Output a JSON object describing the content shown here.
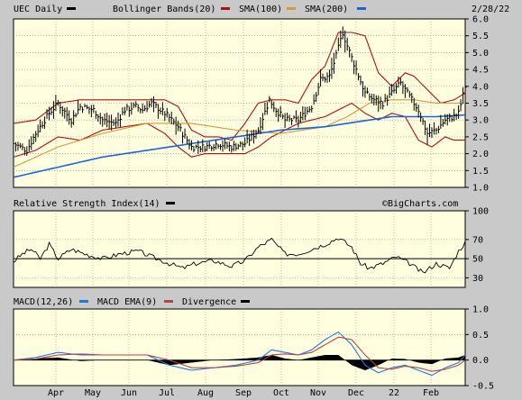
{
  "header": {
    "symbol_label": "UEC Daily",
    "bb_label": "Bollinger Bands(20)",
    "sma100_label": "SMA(100)",
    "sma200_label": "SMA(200)",
    "date": "2/28/22"
  },
  "rsi_panel": {
    "title": "Relative Strength Index(14)",
    "watermark": "©BigCharts.com"
  },
  "macd_panel": {
    "macd_label": "MACD(12,26)",
    "ema_label": "MACD EMA(9)",
    "div_label": "Divergence"
  },
  "months": [
    "Apr",
    "May",
    "Jun",
    "Jul",
    "Aug",
    "Sep",
    "Oct",
    "Nov",
    "Dec",
    "22",
    "Feb"
  ],
  "colors": {
    "background": "#c9c9c9",
    "plot": "#ffffe0",
    "grid": "#8c8c8c",
    "price": "#000000",
    "bollinger": "#aa1111",
    "sma100": "#d19a3c",
    "sma200": "#1e63d6",
    "macd": "#2277dd",
    "macd_ema": "#b44444",
    "divergence": "#000000"
  },
  "chart_data": [
    {
      "type": "ohlc",
      "name": "price",
      "ylim": [
        1.0,
        6.0
      ],
      "yticks": [
        1.0,
        1.5,
        2.0,
        2.5,
        3.0,
        3.5,
        4.0,
        4.5,
        5.0,
        5.5,
        6.0
      ],
      "ytick_labels": [
        "1.0",
        "1.5",
        "2.0",
        "2.5",
        "3.0",
        "3.5",
        "4.0",
        "4.5",
        "5.0",
        "5.5",
        "6.0"
      ],
      "months": [
        "Apr",
        "May",
        "Jun",
        "Jul",
        "Aug",
        "Sep",
        "Oct",
        "Nov",
        "Dec",
        "22",
        "Feb"
      ],
      "close_path": [
        [
          0,
          2.3
        ],
        [
          6,
          2.1
        ],
        [
          10,
          2.6
        ],
        [
          16,
          3.2
        ],
        [
          20,
          3.5
        ],
        [
          26,
          3.0
        ],
        [
          30,
          3.4
        ],
        [
          36,
          3.3
        ],
        [
          40,
          3.0
        ],
        [
          46,
          2.9
        ],
        [
          50,
          3.3
        ],
        [
          55,
          3.4
        ],
        [
          58,
          3.3
        ],
        [
          62,
          3.5
        ],
        [
          68,
          3.2
        ],
        [
          74,
          2.8
        ],
        [
          80,
          2.2
        ],
        [
          86,
          2.2
        ],
        [
          92,
          2.3
        ],
        [
          98,
          2.2
        ],
        [
          104,
          2.3
        ],
        [
          110,
          2.7
        ],
        [
          115,
          3.6
        ],
        [
          118,
          3.3
        ],
        [
          122,
          3.0
        ],
        [
          128,
          3.0
        ],
        [
          134,
          3.4
        ],
        [
          138,
          4.2
        ],
        [
          142,
          4.3
        ],
        [
          145,
          4.9
        ],
        [
          148,
          5.6
        ],
        [
          150,
          5.2
        ],
        [
          154,
          4.5
        ],
        [
          158,
          3.8
        ],
        [
          162,
          3.6
        ],
        [
          166,
          3.5
        ],
        [
          170,
          3.8
        ],
        [
          174,
          4.1
        ],
        [
          178,
          3.7
        ],
        [
          182,
          3.3
        ],
        [
          186,
          2.6
        ],
        [
          190,
          2.7
        ],
        [
          194,
          3.0
        ],
        [
          198,
          3.1
        ],
        [
          200,
          3.2
        ],
        [
          203,
          4.0
        ]
      ],
      "bollinger_upper": [
        [
          0,
          2.9
        ],
        [
          10,
          3.0
        ],
        [
          20,
          3.5
        ],
        [
          30,
          3.6
        ],
        [
          40,
          3.6
        ],
        [
          50,
          3.6
        ],
        [
          60,
          3.6
        ],
        [
          68,
          3.6
        ],
        [
          74,
          3.4
        ],
        [
          80,
          2.7
        ],
        [
          86,
          2.5
        ],
        [
          92,
          2.5
        ],
        [
          98,
          2.4
        ],
        [
          104,
          2.9
        ],
        [
          110,
          3.5
        ],
        [
          116,
          3.6
        ],
        [
          122,
          3.6
        ],
        [
          128,
          3.5
        ],
        [
          134,
          4.2
        ],
        [
          140,
          4.6
        ],
        [
          146,
          5.6
        ],
        [
          152,
          5.6
        ],
        [
          158,
          5.5
        ],
        [
          164,
          4.4
        ],
        [
          170,
          4.0
        ],
        [
          176,
          4.4
        ],
        [
          180,
          4.3
        ],
        [
          186,
          3.9
        ],
        [
          192,
          3.5
        ],
        [
          198,
          3.6
        ],
        [
          203,
          3.8
        ]
      ],
      "bollinger_lower": [
        [
          0,
          1.9
        ],
        [
          10,
          2.1
        ],
        [
          20,
          2.5
        ],
        [
          30,
          2.4
        ],
        [
          40,
          2.7
        ],
        [
          50,
          2.8
        ],
        [
          60,
          2.9
        ],
        [
          68,
          2.6
        ],
        [
          74,
          2.2
        ],
        [
          80,
          1.9
        ],
        [
          86,
          2.0
        ],
        [
          92,
          2.0
        ],
        [
          98,
          2.0
        ],
        [
          104,
          2.0
        ],
        [
          110,
          2.2
        ],
        [
          116,
          2.5
        ],
        [
          122,
          2.7
        ],
        [
          128,
          2.9
        ],
        [
          134,
          3.0
        ],
        [
          140,
          3.1
        ],
        [
          146,
          3.3
        ],
        [
          152,
          3.5
        ],
        [
          158,
          3.2
        ],
        [
          164,
          3.0
        ],
        [
          170,
          3.2
        ],
        [
          176,
          3.1
        ],
        [
          182,
          2.4
        ],
        [
          188,
          2.2
        ],
        [
          194,
          2.5
        ],
        [
          198,
          2.4
        ],
        [
          203,
          2.4
        ]
      ],
      "sma100": [
        [
          0,
          1.6
        ],
        [
          20,
          2.2
        ],
        [
          40,
          2.6
        ],
        [
          60,
          2.9
        ],
        [
          80,
          2.9
        ],
        [
          100,
          2.7
        ],
        [
          120,
          2.6
        ],
        [
          140,
          2.8
        ],
        [
          150,
          3.1
        ],
        [
          160,
          3.5
        ],
        [
          170,
          3.6
        ],
        [
          180,
          3.6
        ],
        [
          190,
          3.5
        ],
        [
          203,
          3.5
        ]
      ],
      "sma200": [
        [
          0,
          1.3
        ],
        [
          20,
          1.6
        ],
        [
          40,
          1.9
        ],
        [
          60,
          2.1
        ],
        [
          80,
          2.3
        ],
        [
          100,
          2.5
        ],
        [
          120,
          2.7
        ],
        [
          140,
          2.8
        ],
        [
          150,
          2.9
        ],
        [
          160,
          3.0
        ],
        [
          170,
          3.1
        ],
        [
          180,
          3.1
        ],
        [
          190,
          3.1
        ],
        [
          203,
          3.15
        ]
      ]
    },
    {
      "type": "line",
      "name": "rsi",
      "ylim": [
        20,
        100
      ],
      "yticks": [
        100,
        70,
        50,
        30
      ],
      "ytick_labels": [
        "100",
        "70",
        "50",
        "30"
      ],
      "reference_line": 50,
      "values": [
        [
          0,
          47
        ],
        [
          4,
          55
        ],
        [
          8,
          60
        ],
        [
          12,
          50
        ],
        [
          16,
          65
        ],
        [
          20,
          50
        ],
        [
          26,
          60
        ],
        [
          32,
          55
        ],
        [
          40,
          50
        ],
        [
          48,
          55
        ],
        [
          56,
          58
        ],
        [
          62,
          52
        ],
        [
          70,
          45
        ],
        [
          76,
          40
        ],
        [
          82,
          45
        ],
        [
          90,
          48
        ],
        [
          98,
          42
        ],
        [
          104,
          48
        ],
        [
          110,
          62
        ],
        [
          116,
          70
        ],
        [
          122,
          55
        ],
        [
          128,
          55
        ],
        [
          134,
          60
        ],
        [
          140,
          65
        ],
        [
          146,
          72
        ],
        [
          152,
          62
        ],
        [
          156,
          45
        ],
        [
          160,
          40
        ],
        [
          166,
          45
        ],
        [
          172,
          52
        ],
        [
          178,
          45
        ],
        [
          184,
          35
        ],
        [
          190,
          45
        ],
        [
          196,
          40
        ],
        [
          200,
          58
        ],
        [
          203,
          67
        ]
      ]
    },
    {
      "type": "line",
      "name": "macd",
      "ylim": [
        -0.5,
        1.0
      ],
      "yticks": [
        1.0,
        0.5,
        0.0,
        -0.5
      ],
      "ytick_labels": [
        "1.0",
        "0.5",
        "0.0",
        "-0.5"
      ],
      "series": [
        {
          "name": "MACD(12,26)",
          "values": [
            [
              0,
              0.0
            ],
            [
              10,
              0.05
            ],
            [
              20,
              0.15
            ],
            [
              30,
              0.1
            ],
            [
              40,
              0.1
            ],
            [
              50,
              0.1
            ],
            [
              60,
              0.1
            ],
            [
              70,
              -0.1
            ],
            [
              80,
              -0.2
            ],
            [
              90,
              -0.15
            ],
            [
              100,
              -0.1
            ],
            [
              110,
              0.0
            ],
            [
              116,
              0.2
            ],
            [
              122,
              0.15
            ],
            [
              128,
              0.1
            ],
            [
              134,
              0.2
            ],
            [
              140,
              0.4
            ],
            [
              146,
              0.55
            ],
            [
              152,
              0.3
            ],
            [
              158,
              -0.1
            ],
            [
              164,
              -0.25
            ],
            [
              170,
              -0.15
            ],
            [
              176,
              -0.1
            ],
            [
              182,
              -0.2
            ],
            [
              188,
              -0.3
            ],
            [
              194,
              -0.15
            ],
            [
              200,
              -0.05
            ],
            [
              203,
              0.1
            ]
          ]
        },
        {
          "name": "MACD EMA(9)",
          "values": [
            [
              0,
              0.0
            ],
            [
              10,
              0.02
            ],
            [
              20,
              0.1
            ],
            [
              30,
              0.12
            ],
            [
              40,
              0.1
            ],
            [
              50,
              0.1
            ],
            [
              60,
              0.1
            ],
            [
              70,
              0.0
            ],
            [
              80,
              -0.15
            ],
            [
              90,
              -0.15
            ],
            [
              100,
              -0.12
            ],
            [
              110,
              -0.05
            ],
            [
              116,
              0.1
            ],
            [
              122,
              0.12
            ],
            [
              128,
              0.1
            ],
            [
              134,
              0.15
            ],
            [
              140,
              0.3
            ],
            [
              146,
              0.45
            ],
            [
              152,
              0.4
            ],
            [
              158,
              0.1
            ],
            [
              164,
              -0.15
            ],
            [
              170,
              -0.18
            ],
            [
              176,
              -0.12
            ],
            [
              182,
              -0.15
            ],
            [
              188,
              -0.22
            ],
            [
              194,
              -0.18
            ],
            [
              200,
              -0.1
            ],
            [
              203,
              0.0
            ]
          ]
        }
      ],
      "divergence": [
        [
          0,
          0.0
        ],
        [
          10,
          0.03
        ],
        [
          20,
          0.05
        ],
        [
          30,
          -0.02
        ],
        [
          40,
          0.0
        ],
        [
          60,
          0.0
        ],
        [
          70,
          -0.1
        ],
        [
          80,
          -0.05
        ],
        [
          90,
          0.0
        ],
        [
          100,
          0.02
        ],
        [
          110,
          0.05
        ],
        [
          116,
          0.1
        ],
        [
          122,
          0.03
        ],
        [
          128,
          0.0
        ],
        [
          134,
          0.05
        ],
        [
          140,
          0.1
        ],
        [
          146,
          0.1
        ],
        [
          152,
          -0.1
        ],
        [
          158,
          -0.2
        ],
        [
          164,
          -0.1
        ],
        [
          170,
          0.03
        ],
        [
          176,
          0.02
        ],
        [
          182,
          -0.05
        ],
        [
          188,
          -0.08
        ],
        [
          194,
          0.03
        ],
        [
          200,
          0.05
        ],
        [
          203,
          0.1
        ]
      ]
    }
  ]
}
